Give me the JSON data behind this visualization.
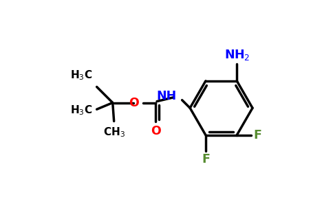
{
  "background_color": "#ffffff",
  "bond_color": "#000000",
  "bond_width": 2.5,
  "atom_colors": {
    "O": "#ff0000",
    "N": "#0000ff",
    "F": "#558b2f",
    "C": "#000000"
  },
  "figsize": [
    4.84,
    3.0
  ],
  "dpi": 100,
  "xlim": [
    0,
    9.68
  ],
  "ylim": [
    0,
    6.0
  ]
}
